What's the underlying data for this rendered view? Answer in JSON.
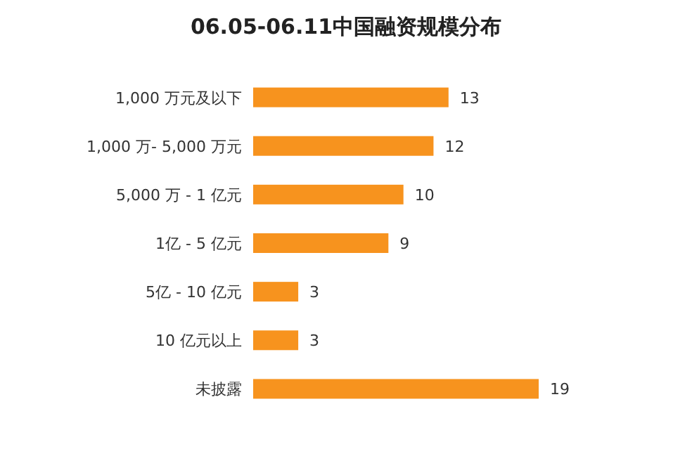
{
  "chart_data": {
    "type": "bar",
    "title": "06.05-06.11中国融资规模分布",
    "orientation": "horizontal",
    "categories": [
      "1,000 万元及以下",
      "1,000 万- 5,000 万元",
      "5,000 万 - 1 亿元",
      "1亿 - 5 亿元",
      "5亿 - 10 亿元",
      "10 亿元以上",
      "未披露"
    ],
    "values": [
      13,
      12,
      10,
      9,
      3,
      3,
      19
    ],
    "color": "#f7931e",
    "data_labels": true,
    "tick_labels": "y"
  }
}
